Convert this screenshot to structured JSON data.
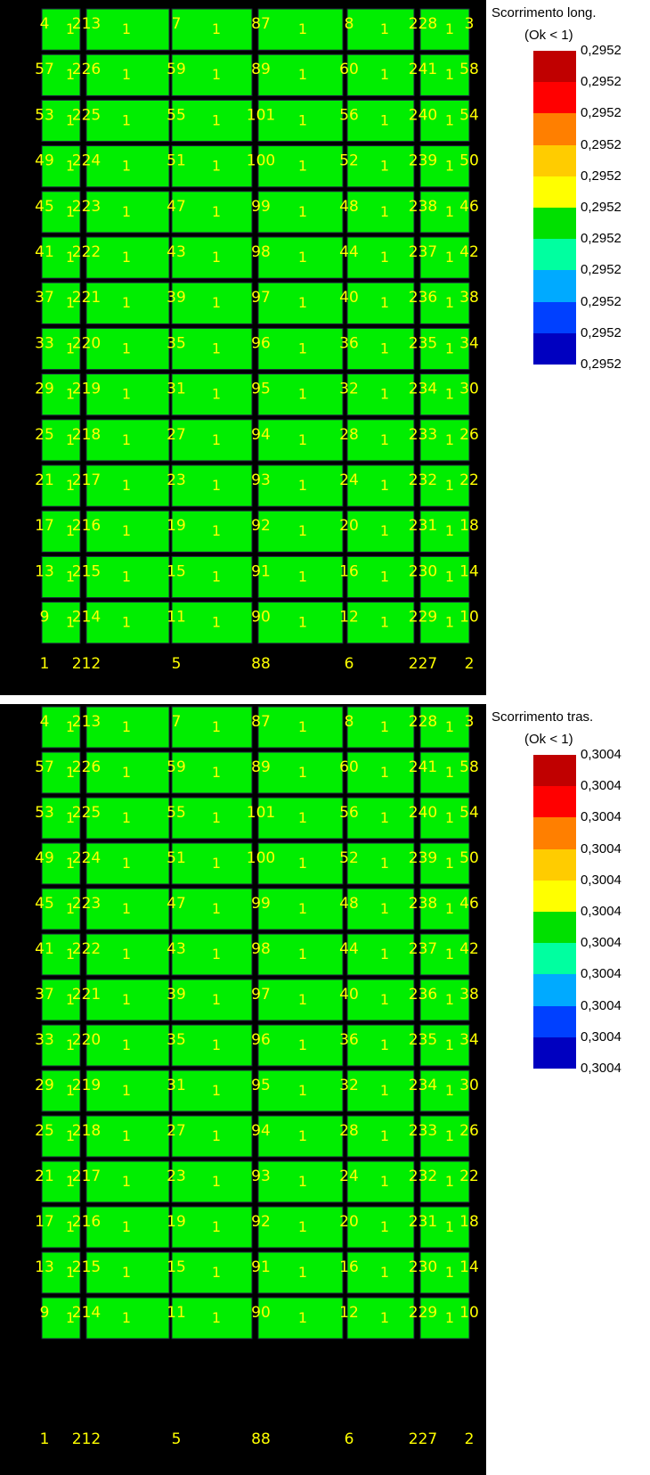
{
  "panels": [
    {
      "legend_title": "Scorrimento long.",
      "legend_subtitle": "(Ok < 1)",
      "legend_values": [
        "0,2952",
        "0,2952",
        "0,2952",
        "0,2952",
        "0,2952",
        "0,2952",
        "0,2952",
        "0,2952",
        "0,2952",
        "0,2952",
        "0,2952"
      ]
    },
    {
      "legend_title": "Scorrimento tras.",
      "legend_subtitle": "(Ok < 1)",
      "legend_values": [
        "0,3004",
        "0,3004",
        "0,3004",
        "0,3004",
        "0,3004",
        "0,3004",
        "0,3004",
        "0,3004",
        "0,3004",
        "0,3004",
        "0,3004"
      ]
    }
  ],
  "legend_colors": [
    "#c00000",
    "#ff0000",
    "#ff7f00",
    "#ffcc00",
    "#ffff00",
    "#00e000",
    "#00ffa0",
    "#00aaff",
    "#0040ff",
    "#0000c0"
  ],
  "mesh": {
    "fill_color": "#00ee00",
    "label_color": "#ffff00",
    "row_labels": [
      [
        "4",
        "213",
        "7",
        "87",
        "8",
        "228",
        "3"
      ],
      [
        "57",
        "226",
        "59",
        "89",
        "60",
        "241",
        "58"
      ],
      [
        "53",
        "225",
        "55",
        "101",
        "56",
        "240",
        "54"
      ],
      [
        "49",
        "224",
        "51",
        "100",
        "52",
        "239",
        "50"
      ],
      [
        "45",
        "223",
        "47",
        "99",
        "48",
        "238",
        "46"
      ],
      [
        "41",
        "222",
        "43",
        "98",
        "44",
        "237",
        "42"
      ],
      [
        "37",
        "221",
        "39",
        "97",
        "40",
        "236",
        "38"
      ],
      [
        "33",
        "220",
        "35",
        "96",
        "36",
        "235",
        "34"
      ],
      [
        "29",
        "219",
        "31",
        "95",
        "32",
        "234",
        "30"
      ],
      [
        "25",
        "218",
        "27",
        "94",
        "28",
        "233",
        "26"
      ],
      [
        "21",
        "217",
        "23",
        "93",
        "24",
        "232",
        "22"
      ],
      [
        "17",
        "216",
        "19",
        "92",
        "20",
        "231",
        "18"
      ],
      [
        "13",
        "215",
        "15",
        "91",
        "16",
        "230",
        "14"
      ],
      [
        "9",
        "214",
        "11",
        "90",
        "12",
        "229",
        "10"
      ]
    ],
    "bottom_labels": [
      "1",
      "212",
      "5",
      "88",
      "6",
      "227",
      "2"
    ],
    "element_label": "1"
  }
}
